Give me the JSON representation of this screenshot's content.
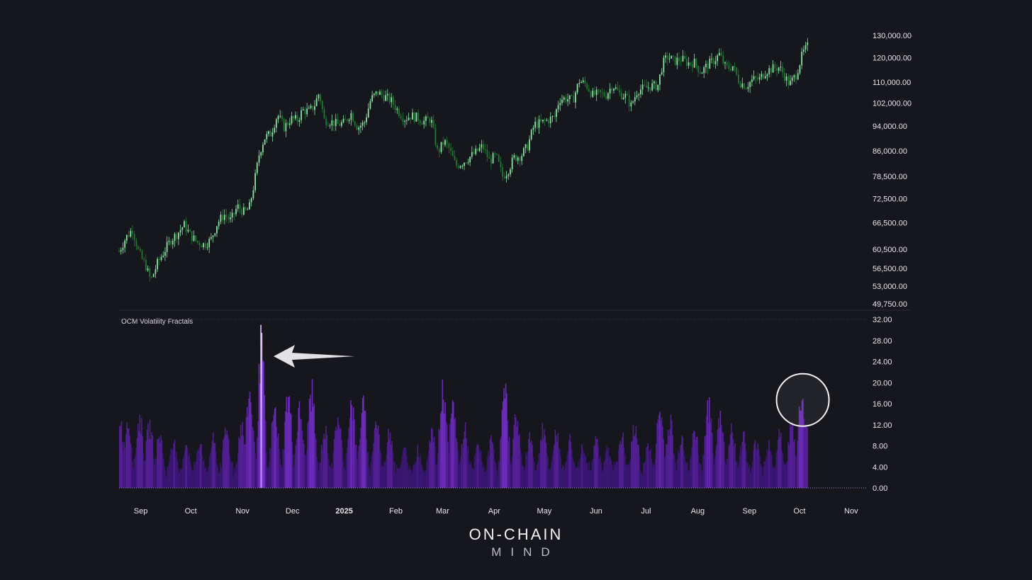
{
  "colors": {
    "background": "#16161d",
    "candle_up": "#86e3a0",
    "candle_down": "#1d7a2f",
    "histogram": "#7a2fd6",
    "histogram_dark": "#4a1799",
    "histogram_peak": "#c38cf0",
    "text": "#e6e6ea",
    "arrow": "#e2e2e6"
  },
  "logo": {
    "line1": "ON-CHAIN",
    "line2": "MIND"
  },
  "chart_data": [
    {
      "type": "line",
      "subtype": "candlestick",
      "price_scale": "log",
      "ylim": [
        49750,
        130000
      ],
      "yticks": [
        "130,000.00",
        "120,000.00",
        "110,000.00",
        "102,000.00",
        "94,000.00",
        "86,000.00",
        "78,500.00",
        "72,500.00",
        "66,500.00",
        "60,500.00",
        "56,500.00",
        "53,000.00",
        "49,750.00"
      ],
      "xlim": [
        "2024-08-19",
        "2025-11-10"
      ],
      "points": [
        [
          "2024-08-19",
          60000
        ],
        [
          "2024-08-23",
          63000
        ],
        [
          "2024-08-27",
          65000
        ],
        [
          "2024-08-31",
          59500
        ],
        [
          "2024-09-04",
          57000
        ],
        [
          "2024-09-07",
          54000
        ],
        [
          "2024-09-11",
          57500
        ],
        [
          "2024-09-15",
          60000
        ],
        [
          "2024-09-19",
          62500
        ],
        [
          "2024-09-23",
          64000
        ],
        [
          "2024-09-27",
          66000
        ],
        [
          "2024-10-01",
          63500
        ],
        [
          "2024-10-05",
          62000
        ],
        [
          "2024-10-09",
          61500
        ],
        [
          "2024-10-13",
          62500
        ],
        [
          "2024-10-17",
          66500
        ],
        [
          "2024-10-21",
          68500
        ],
        [
          "2024-10-25",
          67000
        ],
        [
          "2024-10-29",
          70500
        ],
        [
          "2024-11-02",
          69000
        ],
        [
          "2024-11-05",
          70000
        ],
        [
          "2024-11-08",
          76500
        ],
        [
          "2024-11-11",
          85000
        ],
        [
          "2024-11-14",
          90000
        ],
        [
          "2024-11-18",
          91500
        ],
        [
          "2024-11-22",
          98000
        ],
        [
          "2024-11-26",
          93500
        ],
        [
          "2024-11-30",
          96500
        ],
        [
          "2024-12-04",
          96000
        ],
        [
          "2024-12-07",
          99500
        ],
        [
          "2024-12-11",
          99000
        ],
        [
          "2024-12-14",
          101000
        ],
        [
          "2024-12-17",
          106000
        ],
        [
          "2024-12-20",
          96000
        ],
        [
          "2024-12-24",
          95500
        ],
        [
          "2024-12-28",
          94500
        ],
        [
          "2025-01-01",
          95000
        ],
        [
          "2025-01-05",
          98500
        ],
        [
          "2025-01-09",
          93500
        ],
        [
          "2025-01-13",
          95000
        ],
        [
          "2025-01-17",
          103500
        ],
        [
          "2025-01-21",
          106000
        ],
        [
          "2025-01-25",
          104500
        ],
        [
          "2025-01-29",
          103000
        ],
        [
          "2025-02-02",
          99500
        ],
        [
          "2025-02-06",
          96500
        ],
        [
          "2025-02-10",
          97500
        ],
        [
          "2025-02-14",
          96800
        ],
        [
          "2025-02-18",
          95500
        ],
        [
          "2025-02-22",
          96500
        ],
        [
          "2025-02-26",
          85500
        ],
        [
          "2025-03-02",
          89000
        ],
        [
          "2025-03-05",
          86500
        ],
        [
          "2025-03-09",
          81500
        ],
        [
          "2025-03-13",
          82500
        ],
        [
          "2025-03-17",
          84000
        ],
        [
          "2025-03-21",
          85500
        ],
        [
          "2025-03-25",
          87500
        ],
        [
          "2025-03-29",
          83000
        ],
        [
          "2025-04-02",
          84500
        ],
        [
          "2025-04-06",
          78500
        ],
        [
          "2025-04-09",
          80000
        ],
        [
          "2025-04-13",
          84000
        ],
        [
          "2025-04-17",
          84500
        ],
        [
          "2025-04-21",
          87500
        ],
        [
          "2025-04-25",
          94500
        ],
        [
          "2025-04-29",
          95000
        ],
        [
          "2025-05-03",
          96000
        ],
        [
          "2025-05-07",
          97000
        ],
        [
          "2025-05-10",
          103500
        ],
        [
          "2025-05-14",
          103800
        ],
        [
          "2025-05-18",
          103000
        ],
        [
          "2025-05-22",
          110500
        ],
        [
          "2025-05-26",
          109000
        ],
        [
          "2025-05-30",
          105000
        ],
        [
          "2025-06-03",
          105500
        ],
        [
          "2025-06-07",
          105000
        ],
        [
          "2025-06-11",
          109000
        ],
        [
          "2025-06-15",
          105500
        ],
        [
          "2025-06-19",
          104500
        ],
        [
          "2025-06-22",
          101000
        ],
        [
          "2025-06-26",
          107000
        ],
        [
          "2025-06-30",
          107500
        ],
        [
          "2025-07-04",
          108500
        ],
        [
          "2025-07-08",
          108500
        ],
        [
          "2025-07-11",
          117500
        ],
        [
          "2025-07-14",
          120500
        ],
        [
          "2025-07-18",
          118500
        ],
        [
          "2025-07-22",
          119500
        ],
        [
          "2025-07-26",
          117800
        ],
        [
          "2025-07-30",
          117900
        ],
        [
          "2025-08-03",
          114000
        ],
        [
          "2025-08-07",
          117000
        ],
        [
          "2025-08-11",
          119000
        ],
        [
          "2025-08-14",
          121500
        ],
        [
          "2025-08-18",
          115500
        ],
        [
          "2025-08-22",
          116500
        ],
        [
          "2025-08-26",
          110000
        ],
        [
          "2025-08-30",
          108500
        ],
        [
          "2025-09-03",
          111000
        ],
        [
          "2025-09-07",
          111200
        ],
        [
          "2025-09-11",
          114500
        ],
        [
          "2025-09-15",
          115500
        ],
        [
          "2025-09-19",
          116000
        ],
        [
          "2025-09-22",
          112500
        ],
        [
          "2025-09-25",
          109000
        ],
        [
          "2025-09-29",
          113000
        ],
        [
          "2025-10-03",
          122000
        ],
        [
          "2025-10-06",
          125000
        ]
      ]
    },
    {
      "type": "area",
      "title": "OCM Volatility Fractals",
      "ylim": [
        0,
        32
      ],
      "yticks": [
        "32.00",
        "28.00",
        "24.00",
        "20.00",
        "16.00",
        "12.00",
        "8.00",
        "4.00",
        "0.00"
      ],
      "xlim": [
        "2024-08-19",
        "2025-11-10"
      ],
      "xticks": [
        "Sep",
        "Oct",
        "Nov",
        "Dec",
        "2025",
        "Feb",
        "Mar",
        "Apr",
        "May",
        "Jun",
        "Jul",
        "Aug",
        "Sep",
        "Oct",
        "Nov"
      ],
      "xtick_dates": [
        "2024-09-01",
        "2024-10-01",
        "2024-11-01",
        "2024-12-01",
        "2025-01-01",
        "2025-02-01",
        "2025-03-01",
        "2025-04-01",
        "2025-05-01",
        "2025-06-01",
        "2025-07-01",
        "2025-08-01",
        "2025-09-01",
        "2025-10-01",
        "2025-11-01"
      ],
      "peaks": [
        [
          "2024-08-19",
          15
        ],
        [
          "2024-08-24",
          14
        ],
        [
          "2024-08-31",
          14.5
        ],
        [
          "2024-09-06",
          13
        ],
        [
          "2024-09-12",
          11
        ],
        [
          "2024-09-20",
          10
        ],
        [
          "2024-09-28",
          9.5
        ],
        [
          "2024-10-06",
          10
        ],
        [
          "2024-10-14",
          10
        ],
        [
          "2024-10-22",
          12
        ],
        [
          "2024-10-31",
          13
        ],
        [
          "2024-11-05",
          19.5
        ],
        [
          "2024-11-12",
          30
        ],
        [
          "2024-11-20",
          16
        ],
        [
          "2024-11-28",
          19
        ],
        [
          "2024-12-05",
          16
        ],
        [
          "2024-12-12",
          20
        ],
        [
          "2024-12-20",
          12
        ],
        [
          "2024-12-28",
          15
        ],
        [
          "2025-01-05",
          18
        ],
        [
          "2025-01-12",
          17
        ],
        [
          "2025-01-20",
          14
        ],
        [
          "2025-01-28",
          12
        ],
        [
          "2025-02-06",
          8
        ],
        [
          "2025-02-14",
          8
        ],
        [
          "2025-02-22",
          12
        ],
        [
          "2025-03-01",
          20.5
        ],
        [
          "2025-03-07",
          17
        ],
        [
          "2025-03-14",
          12
        ],
        [
          "2025-03-22",
          9
        ],
        [
          "2025-03-30",
          10
        ],
        [
          "2025-04-07",
          19.5
        ],
        [
          "2025-04-14",
          15
        ],
        [
          "2025-04-22",
          11
        ],
        [
          "2025-04-30",
          13
        ],
        [
          "2025-05-08",
          12
        ],
        [
          "2025-05-16",
          10
        ],
        [
          "2025-05-24",
          9
        ],
        [
          "2025-06-01",
          10
        ],
        [
          "2025-06-08",
          9
        ],
        [
          "2025-06-16",
          11
        ],
        [
          "2025-06-24",
          13
        ],
        [
          "2025-07-02",
          9
        ],
        [
          "2025-07-09",
          16
        ],
        [
          "2025-07-15",
          14
        ],
        [
          "2025-07-22",
          11
        ],
        [
          "2025-07-30",
          12
        ],
        [
          "2025-08-07",
          17
        ],
        [
          "2025-08-14",
          15.5
        ],
        [
          "2025-08-21",
          13
        ],
        [
          "2025-08-28",
          11
        ],
        [
          "2025-09-05",
          10
        ],
        [
          "2025-09-12",
          9
        ],
        [
          "2025-09-19",
          11
        ],
        [
          "2025-09-26",
          13
        ],
        [
          "2025-10-02",
          19
        ],
        [
          "2025-10-06",
          16
        ]
      ]
    }
  ]
}
